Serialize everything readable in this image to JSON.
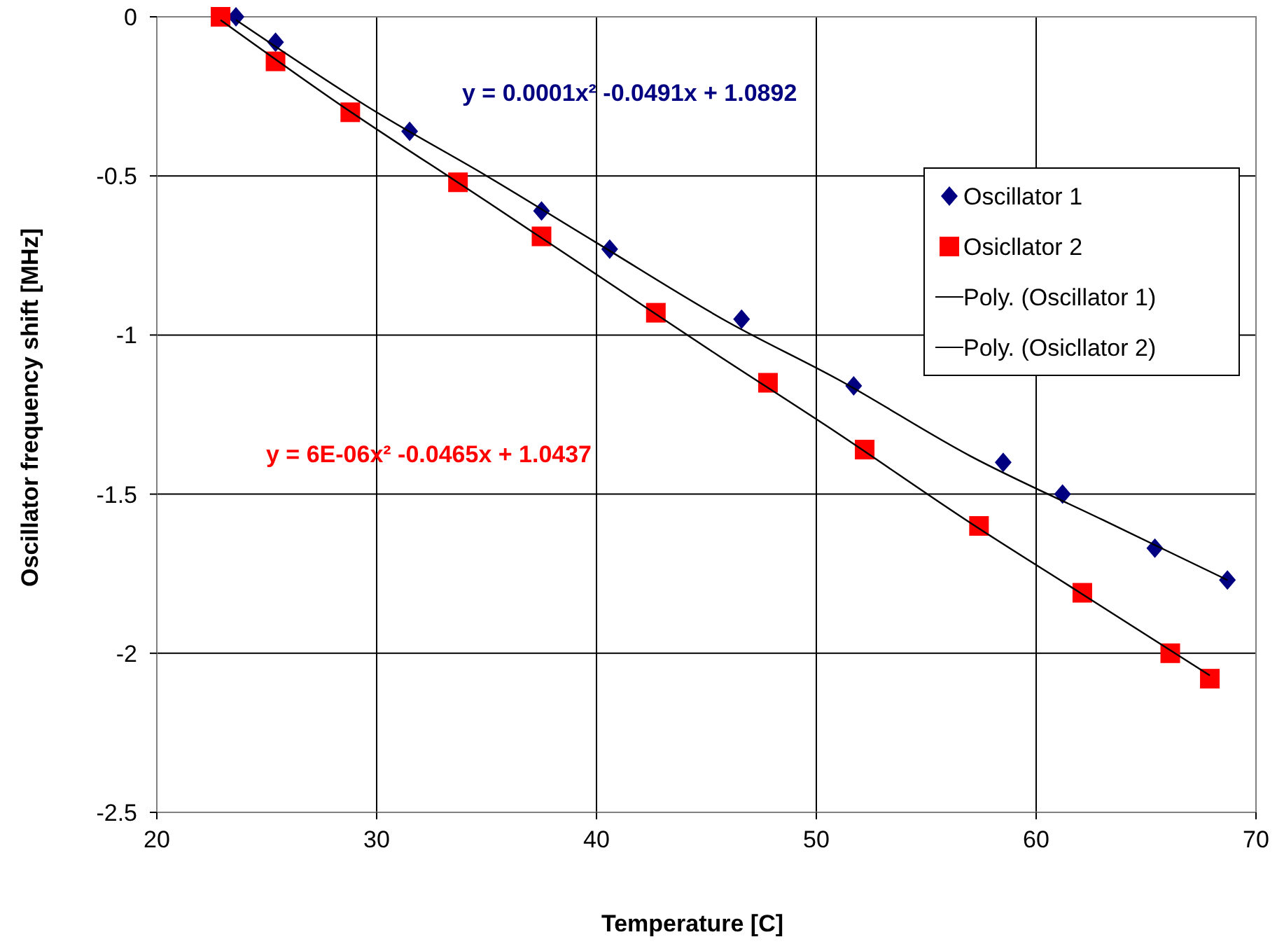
{
  "chart_data": {
    "type": "scatter",
    "xlabel": "Temperature [C]",
    "ylabel": "Oscillator frequency shift [MHz]",
    "xlim": [
      20,
      70
    ],
    "xticks": [
      20,
      30,
      40,
      50,
      60,
      70
    ],
    "ylim": [
      -2.5,
      0
    ],
    "yticks": [
      -2.5,
      -2,
      -1.5,
      -1,
      -0.5,
      0
    ],
    "grid": true,
    "legend": "top right",
    "series": [
      {
        "name": "Oscillator 1",
        "color": "#000080",
        "marker": "diamond",
        "x": [
          23.6,
          25.4,
          31.5,
          37.5,
          40.6,
          46.6,
          51.7,
          58.5,
          61.2,
          65.4,
          68.7
        ],
        "values": [
          0,
          -0.08,
          -0.36,
          -0.61,
          -0.73,
          -0.95,
          -1.16,
          -1.4,
          -1.5,
          -1.67,
          -1.77
        ]
      },
      {
        "name": "Osicllator 2",
        "color": "#ff0000",
        "marker": "square",
        "x": [
          22.9,
          25.4,
          28.8,
          33.7,
          37.5,
          42.7,
          47.8,
          52.2,
          57.4,
          62.1,
          66.1,
          67.9
        ],
        "values": [
          0,
          -0.14,
          -0.3,
          -0.52,
          -0.69,
          -0.93,
          -1.15,
          -1.36,
          -1.6,
          -1.81,
          -2,
          -2.08
        ]
      },
      {
        "name": "Poly. (Oscillator 1)",
        "type": "line",
        "color": "#000000",
        "marker": "none",
        "x": [
          23.6,
          30,
          35,
          40,
          46,
          51,
          57,
          63,
          68.7
        ],
        "values": [
          -0.01,
          -0.3,
          -0.5,
          -0.71,
          -0.96,
          -1.14,
          -1.38,
          -1.58,
          -1.77
        ]
      },
      {
        "name": "Poly. (Osicllator 2)",
        "type": "line",
        "color": "#000000",
        "marker": "none",
        "x": [
          22.9,
          28,
          35,
          40,
          45,
          51,
          57,
          62,
          67.9
        ],
        "values": [
          -0.01,
          -0.26,
          -0.58,
          -0.81,
          -1.04,
          -1.31,
          -1.59,
          -1.81,
          -2.07
        ]
      }
    ],
    "annotations": [
      "y = 0.0001x² -0.0491x + 1.0892",
      "y = 6E-06x² -0.0465x + 1.0437"
    ]
  }
}
